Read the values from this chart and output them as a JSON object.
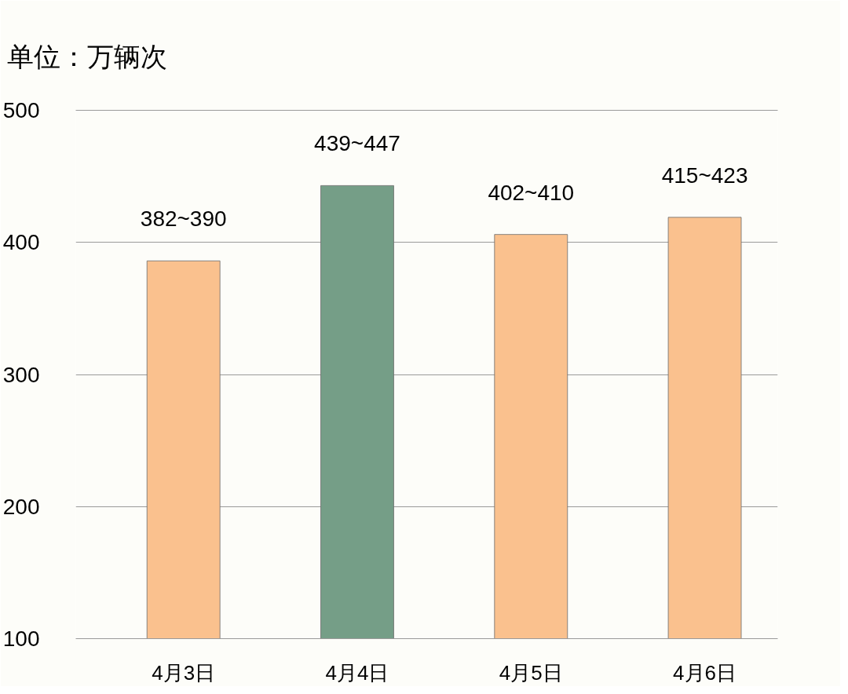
{
  "chart_data": {
    "type": "bar",
    "title": "单位：万辆次",
    "categories": [
      "4月3日",
      "4月4日",
      "4月5日",
      "4月6日"
    ],
    "values": [
      386,
      443,
      406,
      419
    ],
    "colors": [
      "#fac18e",
      "#759e87",
      "#fac18e",
      "#fac18e"
    ],
    "ylim": [
      100,
      500
    ],
    "yticks": [
      100,
      200,
      300,
      400,
      500
    ],
    "grid": "y",
    "annotations": [
      {
        "text": "382~390",
        "x": "4月3日",
        "y": 386
      },
      {
        "text": "439~447",
        "x": "4月4日",
        "y": 443
      },
      {
        "text": "402~410",
        "x": "4月5日",
        "y": 406
      },
      {
        "text": "415~423",
        "x": "4月6日",
        "y": 419
      }
    ]
  }
}
